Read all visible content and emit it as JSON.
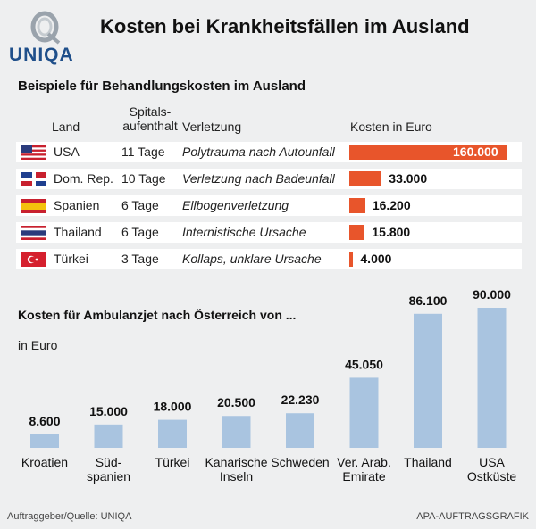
{
  "header": {
    "brand": "UNIQA",
    "title": "Kosten bei Krankheitsfällen im Ausland"
  },
  "table_section": {
    "title": "Beispiele für Behandlungskosten im Ausland",
    "columns": {
      "land": "Land",
      "stay_line1": "Spitals-",
      "stay_line2": "aufenthalt",
      "injury": "Verletzung",
      "cost": "Kosten in Euro"
    },
    "rows": [
      {
        "flag": "us-flag-icon",
        "country": "USA",
        "stay": "11 Tage",
        "injury": "Polytrauma nach Autounfall",
        "cost": 160000,
        "cost_label": "160.000"
      },
      {
        "flag": "dominican-republic-flag-icon",
        "country": "Dom. Rep.",
        "stay": "10 Tage",
        "injury": "Verletzung nach Badeunfall",
        "cost": 33000,
        "cost_label": "33.000"
      },
      {
        "flag": "spain-flag-icon",
        "country": "Spanien",
        "stay": "6 Tage",
        "injury": "Ellbogenverletzung",
        "cost": 16200,
        "cost_label": "16.200"
      },
      {
        "flag": "thailand-flag-icon",
        "country": "Thailand",
        "stay": "6 Tage",
        "injury": "Internistische Ursache",
        "cost": 15800,
        "cost_label": "15.800"
      },
      {
        "flag": "turkey-flag-icon",
        "country": "Türkei",
        "stay": "3 Tage",
        "injury": "Kollaps, unklare Ursache",
        "cost": 4000,
        "cost_label": "4.000"
      }
    ]
  },
  "jet_section": {
    "title": "Kosten für Ambulanzjet nach Österreich von ...",
    "unit": "in Euro"
  },
  "chart_data": {
    "type": "bar",
    "title": "Kosten für Ambulanzjet nach Österreich von ...",
    "ylabel": "in Euro",
    "categories": [
      [
        "Kroatien"
      ],
      [
        "Süd-",
        "spanien"
      ],
      [
        "Türkei"
      ],
      [
        "Kanarische",
        "Inseln"
      ],
      [
        "Schweden"
      ],
      [
        "Ver. Arab.",
        "Emirate"
      ],
      [
        "Thailand"
      ],
      [
        "USA",
        "Ostküste"
      ]
    ],
    "values": [
      8600,
      15000,
      18000,
      20500,
      22230,
      45050,
      86100,
      90000
    ],
    "value_labels": [
      "8.600",
      "15.000",
      "18.000",
      "20.500",
      "22.230",
      "45.050",
      "86.100",
      "90.000"
    ],
    "ylim": [
      0,
      90000
    ],
    "grid": false,
    "bar_color": "#a9c4e0"
  },
  "colors": {
    "table_bar": "#e8552b",
    "jet_bar": "#a9c4e0",
    "brand": "#1f4f8a"
  },
  "footer": {
    "source": "Auftraggeber/Quelle: UNIQA",
    "credit": "APA-AUFTRAGSGRAFIK"
  }
}
